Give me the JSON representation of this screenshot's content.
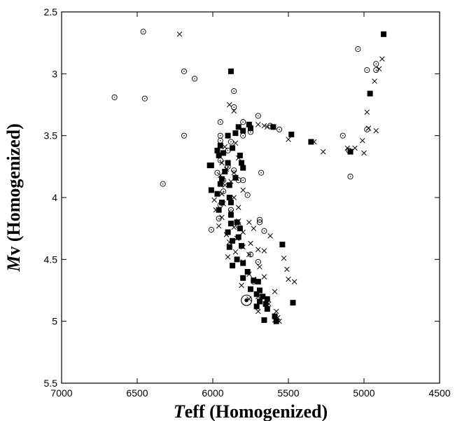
{
  "chart_data": {
    "type": "scatter",
    "title": "",
    "xlabel": {
      "italic": "T",
      "rest": "eff (Homogenized)"
    },
    "ylabel": {
      "italic": "M",
      "rest": "v (Homogenized)"
    },
    "xlim": [
      7000,
      4500
    ],
    "ylim": [
      2.5,
      5.5
    ],
    "x_inverted": true,
    "y_inverted": true,
    "grid": false,
    "legend": "none",
    "x_ticks": [
      7000,
      6500,
      6000,
      5500,
      5000,
      4500
    ],
    "x_tick_labels": [
      "7000",
      "6500",
      "6000",
      "5500",
      "5000",
      "4500"
    ],
    "y_ticks": [
      2.5,
      3,
      3.5,
      4,
      4.5,
      5,
      5.5
    ],
    "y_tick_labels": [
      "2.5",
      "3",
      "3.5",
      "4",
      "4.5",
      "5",
      "5.5"
    ],
    "colors": {
      "marker": "#000000",
      "axis": "#000000",
      "background": "#ffffff"
    },
    "series": [
      {
        "marker": "circle-dot",
        "points": [
          [
            6460,
            2.66
          ],
          [
            6190,
            2.98
          ],
          [
            6120,
            3.04
          ],
          [
            6450,
            3.2
          ],
          [
            6650,
            3.19
          ],
          [
            6190,
            3.5
          ],
          [
            6330,
            3.89
          ],
          [
            5860,
            3.14
          ],
          [
            5860,
            3.27
          ],
          [
            5700,
            3.34
          ],
          [
            5950,
            3.39
          ],
          [
            5950,
            3.5
          ],
          [
            5800,
            3.39
          ],
          [
            5750,
            3.47
          ],
          [
            5950,
            3.54
          ],
          [
            5900,
            3.62
          ],
          [
            5950,
            3.7
          ],
          [
            5900,
            3.75
          ],
          [
            5970,
            3.8
          ],
          [
            5860,
            3.78
          ],
          [
            5830,
            3.86
          ],
          [
            5930,
            3.86
          ],
          [
            5800,
            3.86
          ],
          [
            5680,
            3.8
          ],
          [
            5930,
            3.95
          ],
          [
            5770,
            3.98
          ],
          [
            5950,
            4.06
          ],
          [
            5880,
            4.1
          ],
          [
            5960,
            4.17
          ],
          [
            6010,
            4.26
          ],
          [
            5830,
            4.23
          ],
          [
            5690,
            4.18
          ],
          [
            5690,
            4.2
          ],
          [
            5660,
            4.27
          ],
          [
            5750,
            4.46
          ],
          [
            5700,
            4.52
          ],
          [
            5730,
            4.68
          ],
          [
            5560,
            3.45
          ],
          [
            5620,
            3.42
          ],
          [
            5140,
            3.5
          ],
          [
            5100,
            3.62
          ],
          [
            5090,
            3.83
          ],
          [
            5040,
            2.8
          ],
          [
            4980,
            2.97
          ],
          [
            4920,
            2.92
          ],
          [
            4920,
            2.97
          ],
          [
            4980,
            3.45
          ],
          [
            5880,
            3.55
          ],
          [
            5800,
            3.5
          ]
        ]
      },
      {
        "marker": "filled-square",
        "points": [
          [
            5880,
            2.98
          ],
          [
            4870,
            2.68
          ],
          [
            4960,
            3.16
          ],
          [
            5600,
            3.43
          ],
          [
            5480,
            3.49
          ],
          [
            5350,
            3.55
          ],
          [
            5090,
            3.63
          ],
          [
            5760,
            3.41
          ],
          [
            5750,
            3.44
          ],
          [
            5830,
            3.43
          ],
          [
            5800,
            3.46
          ],
          [
            5850,
            3.48
          ],
          [
            5900,
            3.5
          ],
          [
            5950,
            3.58
          ],
          [
            5930,
            3.64
          ],
          [
            5870,
            3.6
          ],
          [
            5970,
            3.62
          ],
          [
            5960,
            3.66
          ],
          [
            5820,
            3.66
          ],
          [
            6010,
            3.74
          ],
          [
            6020,
            3.74
          ],
          [
            5900,
            3.72
          ],
          [
            5810,
            3.72
          ],
          [
            5800,
            3.76
          ],
          [
            5920,
            3.79
          ],
          [
            5940,
            3.85
          ],
          [
            5850,
            3.84
          ],
          [
            5950,
            3.89
          ],
          [
            5890,
            3.9
          ],
          [
            6010,
            3.94
          ],
          [
            5970,
            3.97
          ],
          [
            5890,
            4.0
          ],
          [
            5940,
            4.04
          ],
          [
            5880,
            4.04
          ],
          [
            5960,
            4.1
          ],
          [
            5880,
            4.14
          ],
          [
            5840,
            4.2
          ],
          [
            5880,
            4.21
          ],
          [
            5820,
            4.25
          ],
          [
            5900,
            4.28
          ],
          [
            5830,
            4.32
          ],
          [
            5870,
            4.35
          ],
          [
            5810,
            4.39
          ],
          [
            5890,
            4.4
          ],
          [
            5540,
            4.38
          ],
          [
            5840,
            4.5
          ],
          [
            5800,
            4.53
          ],
          [
            5870,
            4.55
          ],
          [
            5770,
            4.6
          ],
          [
            5800,
            4.65
          ],
          [
            5730,
            4.67
          ],
          [
            5700,
            4.68
          ],
          [
            5750,
            4.74
          ],
          [
            5690,
            4.75
          ],
          [
            5710,
            4.78
          ],
          [
            5670,
            4.8
          ],
          [
            5640,
            4.82
          ],
          [
            5690,
            4.84
          ],
          [
            5650,
            4.86
          ],
          [
            5710,
            4.88
          ],
          [
            5640,
            4.9
          ],
          [
            5660,
            4.99
          ],
          [
            5590,
            4.96
          ],
          [
            5580,
            5.0
          ],
          [
            5470,
            4.85
          ]
        ]
      },
      {
        "marker": "cross",
        "points": [
          [
            6220,
            2.68
          ],
          [
            4880,
            2.88
          ],
          [
            4900,
            2.96
          ],
          [
            4930,
            3.06
          ],
          [
            4980,
            3.31
          ],
          [
            4970,
            3.44
          ],
          [
            4920,
            3.46
          ],
          [
            5010,
            3.54
          ],
          [
            5060,
            3.6
          ],
          [
            5110,
            3.6
          ],
          [
            5000,
            3.64
          ],
          [
            5270,
            3.63
          ],
          [
            5330,
            3.55
          ],
          [
            5500,
            3.53
          ],
          [
            5660,
            3.42
          ],
          [
            5700,
            3.41
          ],
          [
            5640,
            3.43
          ],
          [
            5860,
            3.3
          ],
          [
            5890,
            3.25
          ],
          [
            5850,
            3.56
          ],
          [
            5920,
            3.59
          ],
          [
            5830,
            3.68
          ],
          [
            5940,
            3.72
          ],
          [
            5910,
            3.77
          ],
          [
            5860,
            3.8
          ],
          [
            5950,
            3.82
          ],
          [
            5880,
            3.87
          ],
          [
            5920,
            3.9
          ],
          [
            5800,
            3.94
          ],
          [
            5940,
            3.97
          ],
          [
            5860,
            4.0
          ],
          [
            5990,
            4.02
          ],
          [
            5930,
            4.05
          ],
          [
            5830,
            4.08
          ],
          [
            5980,
            4.1
          ],
          [
            5880,
            4.12
          ],
          [
            5940,
            4.16
          ],
          [
            5830,
            4.19
          ],
          [
            5760,
            4.2
          ],
          [
            5960,
            4.23
          ],
          [
            5860,
            4.24
          ],
          [
            5730,
            4.25
          ],
          [
            5800,
            4.28
          ],
          [
            5910,
            4.3
          ],
          [
            5840,
            4.33
          ],
          [
            5620,
            4.31
          ],
          [
            5890,
            4.36
          ],
          [
            5750,
            4.37
          ],
          [
            5800,
            4.4
          ],
          [
            5700,
            4.42
          ],
          [
            5850,
            4.44
          ],
          [
            5660,
            4.43
          ],
          [
            5760,
            4.46
          ],
          [
            5900,
            4.48
          ],
          [
            5530,
            4.49
          ],
          [
            5800,
            4.52
          ],
          [
            5870,
            4.55
          ],
          [
            5690,
            4.56
          ],
          [
            5510,
            4.58
          ],
          [
            5760,
            4.62
          ],
          [
            5660,
            4.64
          ],
          [
            5500,
            4.66
          ],
          [
            5730,
            4.66
          ],
          [
            5810,
            4.71
          ],
          [
            5460,
            4.68
          ],
          [
            5590,
            4.76
          ],
          [
            5760,
            4.82
          ],
          [
            5700,
            4.8
          ],
          [
            5630,
            4.86
          ],
          [
            5700,
            4.92
          ],
          [
            5580,
            4.92
          ],
          [
            5570,
            4.97
          ],
          [
            5590,
            4.99
          ],
          [
            5560,
            5.0
          ]
        ]
      }
    ],
    "annotations": [
      {
        "marker": "sun-symbol",
        "x": 5777,
        "y": 4.83
      }
    ]
  }
}
